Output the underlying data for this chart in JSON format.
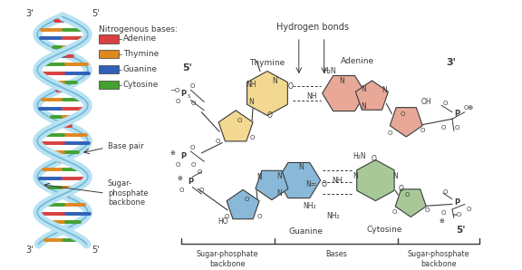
{
  "bg_color": "#ffffff",
  "line_color": "#3a3a3a",
  "legend_title": "Nitrogenous bases:",
  "legend_items": [
    {
      "label": "Adenine",
      "color": "#d94040"
    },
    {
      "label": "Thymine",
      "color": "#e08820"
    },
    {
      "label": "Guanine",
      "color": "#3060b8"
    },
    {
      "label": "Cytosine",
      "color": "#44a030"
    }
  ],
  "thymine_color": "#f2d890",
  "adenine_color": "#e8a898",
  "guanine_color": "#8ab8d8",
  "cytosine_color": "#a8c898",
  "helix_color": "#b8e2f2",
  "helix_edge": "#70b8d8",
  "dna_colors": [
    "#d94040",
    "#e08820",
    "#3060b8",
    "#44a030"
  ]
}
